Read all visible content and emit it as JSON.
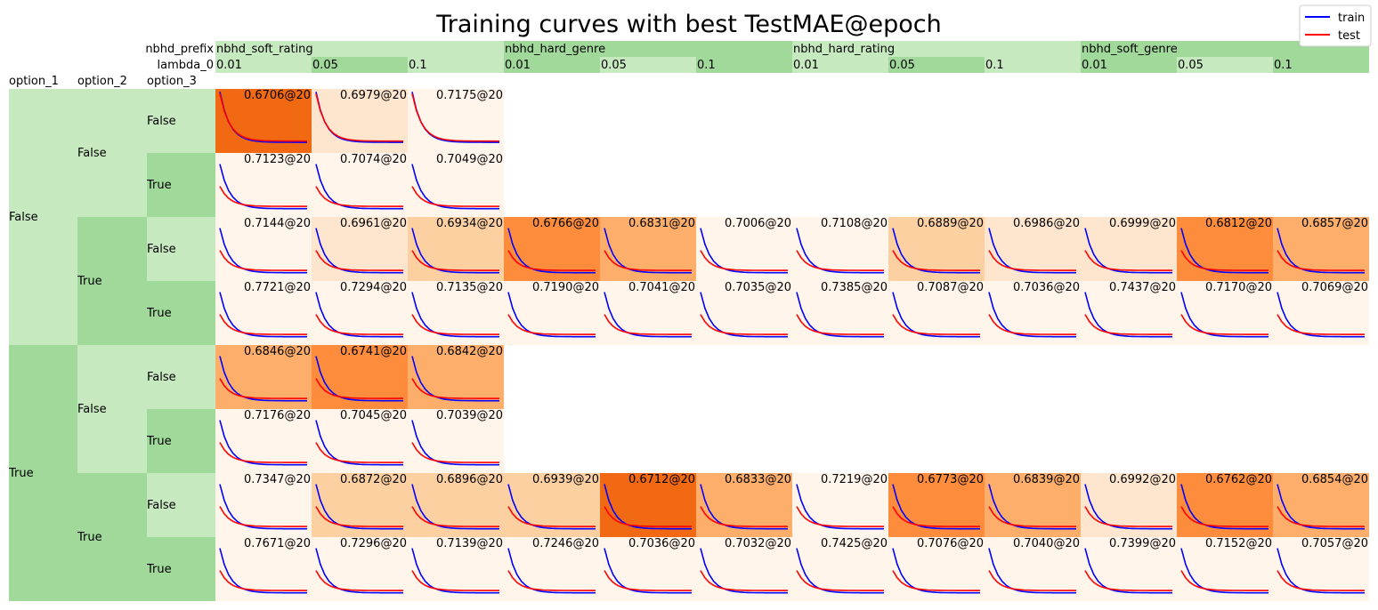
{
  "chart_data": {
    "type": "heatmap",
    "title": "Training curves with best TestMAE@epoch",
    "legend": {
      "placement": "top-right",
      "entries": [
        "train",
        "test"
      ]
    },
    "colors": {
      "train": "#0000ff",
      "test": "#ff0000",
      "header_light": "#c7e9c0",
      "header_dark": "#a1d99b",
      "heat_scale": [
        "#fff5eb",
        "#fee6ce",
        "#fdd0a2",
        "#fdae6b",
        "#fd8d3c",
        "#f16913",
        "#d94801"
      ]
    },
    "column_levels": {
      "nbhd_prefix_label": "nbhd_prefix",
      "lambda_label": "lambda_0",
      "groups": [
        {
          "prefix": "nbhd_soft_rating",
          "lambdas": [
            "0.01",
            "0.05",
            "0.1"
          ]
        },
        {
          "prefix": "nbhd_hard_genre",
          "lambdas": [
            "0.01",
            "0.05",
            "0.1"
          ]
        },
        {
          "prefix": "nbhd_hard_rating",
          "lambdas": [
            "0.01",
            "0.05",
            "0.1"
          ]
        },
        {
          "prefix": "nbhd_soft_genre",
          "lambdas": [
            "0.01",
            "0.05",
            "0.1"
          ]
        }
      ]
    },
    "row_levels": {
      "labels": [
        "option_1",
        "option_2",
        "option_3"
      ],
      "rows": [
        [
          "False",
          "False",
          "False"
        ],
        [
          "False",
          "False",
          "True"
        ],
        [
          "False",
          "True",
          "False"
        ],
        [
          "False",
          "True",
          "True"
        ],
        [
          "True",
          "False",
          "False"
        ],
        [
          "True",
          "False",
          "True"
        ],
        [
          "True",
          "True",
          "False"
        ],
        [
          "True",
          "True",
          "True"
        ]
      ]
    },
    "best_epoch": 20,
    "cells": [
      [
        "0.6706@20",
        "0.6979@20",
        "0.7175@20",
        null,
        null,
        null,
        null,
        null,
        null,
        null,
        null,
        null
      ],
      [
        "0.7123@20",
        "0.7074@20",
        "0.7049@20",
        null,
        null,
        null,
        null,
        null,
        null,
        null,
        null,
        null
      ],
      [
        "0.7144@20",
        "0.6961@20",
        "0.6934@20",
        "0.6766@20",
        "0.6831@20",
        "0.7006@20",
        "0.7108@20",
        "0.6889@20",
        "0.6986@20",
        "0.6999@20",
        "0.6812@20",
        "0.6857@20"
      ],
      [
        "0.7721@20",
        "0.7294@20",
        "0.7135@20",
        "0.7190@20",
        "0.7041@20",
        "0.7035@20",
        "0.7385@20",
        "0.7087@20",
        "0.7036@20",
        "0.7437@20",
        "0.7170@20",
        "0.7069@20"
      ],
      [
        "0.6846@20",
        "0.6741@20",
        "0.6842@20",
        null,
        null,
        null,
        null,
        null,
        null,
        null,
        null,
        null
      ],
      [
        "0.7176@20",
        "0.7045@20",
        "0.7039@20",
        null,
        null,
        null,
        null,
        null,
        null,
        null,
        null,
        null
      ],
      [
        "0.7347@20",
        "0.6872@20",
        "0.6896@20",
        "0.6939@20",
        "0.6712@20",
        "0.6833@20",
        "0.7219@20",
        "0.6773@20",
        "0.6839@20",
        "0.6992@20",
        "0.6762@20",
        "0.6854@20"
      ],
      [
        "0.7671@20",
        "0.7296@20",
        "0.7139@20",
        "0.7246@20",
        "0.7036@20",
        "0.7032@20",
        "0.7425@20",
        "0.7076@20",
        "0.7040@20",
        "0.7399@20",
        "0.7152@20",
        "0.7057@20"
      ]
    ]
  }
}
